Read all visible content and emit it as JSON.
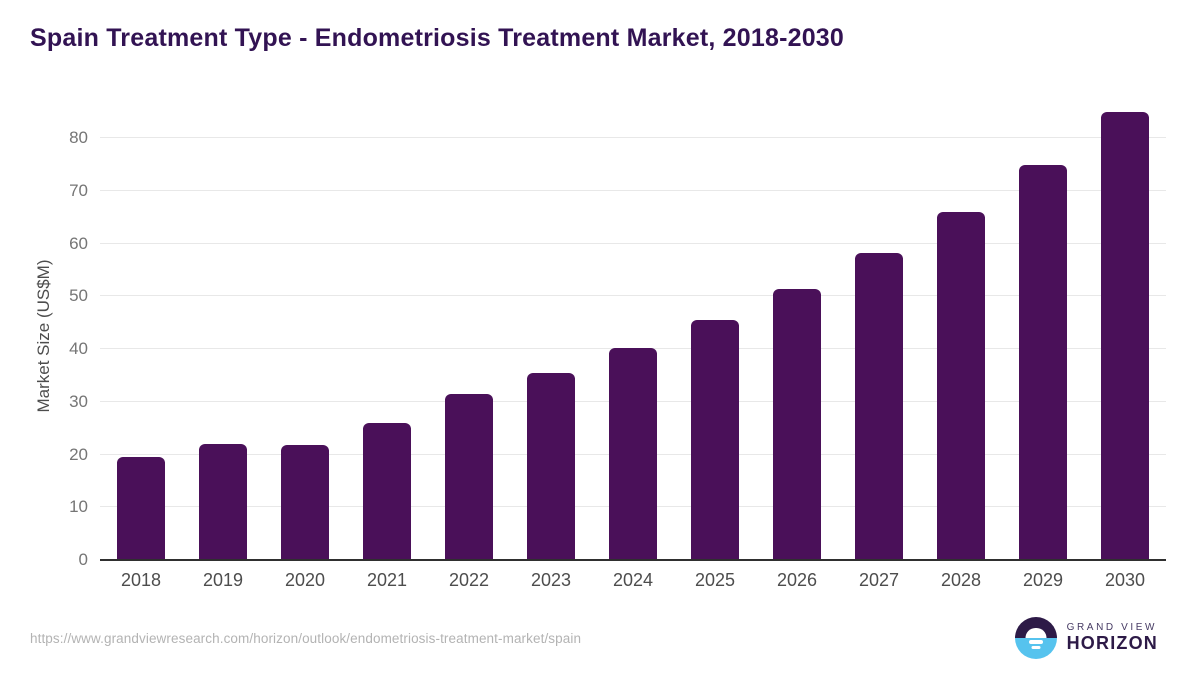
{
  "title": "Spain Treatment Type - Endometriosis Treatment Market, 2018-2030",
  "chart_data": {
    "type": "bar",
    "title": "Spain Treatment Type - Endometriosis Treatment Market, 2018-2030",
    "categories": [
      "2018",
      "2019",
      "2020",
      "2021",
      "2022",
      "2023",
      "2024",
      "2025",
      "2026",
      "2027",
      "2028",
      "2029",
      "2030"
    ],
    "values": [
      19.5,
      22.1,
      21.8,
      26.0,
      31.5,
      35.5,
      40.2,
      45.5,
      51.5,
      58.3,
      66.0,
      74.9,
      85.0
    ],
    "xlabel": "",
    "ylabel": "Market Size (US$M)",
    "ylim": [
      0,
      85
    ],
    "yticks": [
      0,
      10,
      20,
      30,
      40,
      50,
      60,
      70,
      80
    ],
    "grid": true,
    "legend": "none",
    "bar_color": "#4a1059"
  },
  "colors": {
    "title": "#321353",
    "bar": "#4a1059",
    "grid": "#e8e8e8",
    "axis": "#2f2f2f",
    "logo_dark": "#2d1a47",
    "logo_blue": "#56c3ee"
  },
  "footer": {
    "source_url": "https://www.grandviewresearch.com/horizon/outlook/endometriosis-treatment-market/spain",
    "logo": {
      "line1": "GRAND VIEW",
      "line2": "HORIZON"
    }
  }
}
